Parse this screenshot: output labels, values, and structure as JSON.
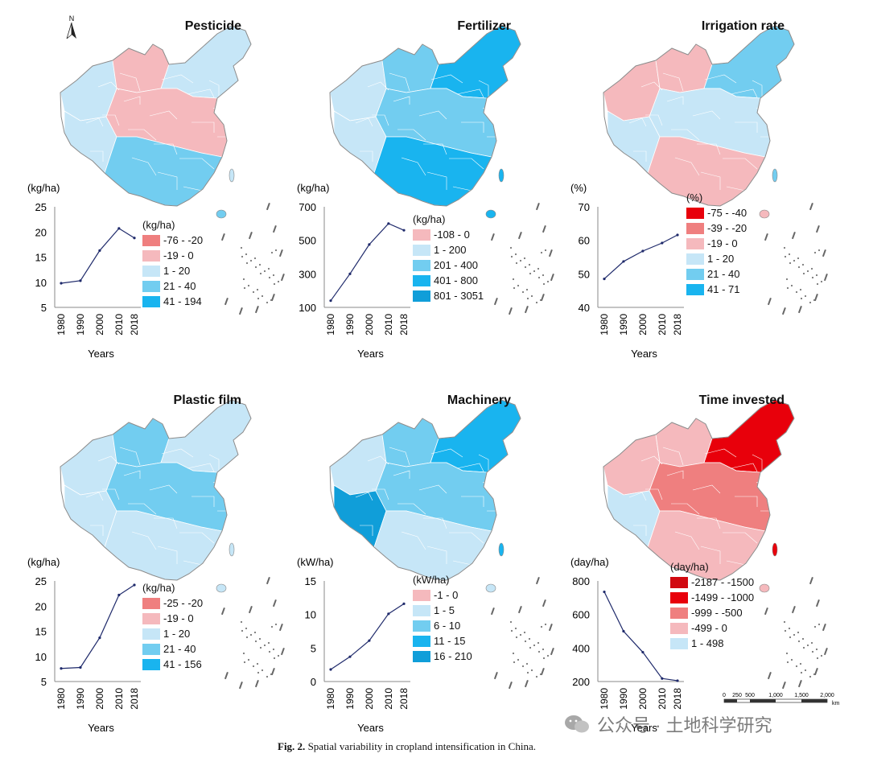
{
  "north_label": "N",
  "caption": {
    "prefix": "Fig. 2.",
    "text": "Spatial variability in cropland intensification in China."
  },
  "watermark": {
    "text": "公众号 · 土地科学研究",
    "icon": "wechat-icon"
  },
  "scalebar": {
    "ticks": [
      "0",
      "250",
      "500",
      "1,000",
      "1,500",
      "2,000"
    ],
    "unit": "km"
  },
  "panels": [
    {
      "title": "Pesticide",
      "legend_unit": "(kg/ha)",
      "legend": [
        {
          "label": "-76 - -20",
          "color": "#ef7f7f"
        },
        {
          "label": "-19 - 0",
          "color": "#f5b9bd"
        },
        {
          "label": "1 - 20",
          "color": "#c6e6f7"
        },
        {
          "label": "21 - 40",
          "color": "#72cdf0"
        },
        {
          "label": "41 - 194",
          "color": "#19b4ef"
        }
      ],
      "map_colors": [
        "#c6e6f7",
        "#f5b9bd",
        "#c6e6f7",
        "#c6e6f7",
        "#f5b9bd",
        "#72cdf0"
      ]
    },
    {
      "title": "Fertilizer",
      "legend_unit": "(kg/ha)",
      "legend": [
        {
          "label": "-108 - 0",
          "color": "#f5b9bd"
        },
        {
          "label": "1 - 200",
          "color": "#c6e6f7"
        },
        {
          "label": "201 - 400",
          "color": "#72cdf0"
        },
        {
          "label": "401 - 800",
          "color": "#19b4ef"
        },
        {
          "label": "801 - 3051",
          "color": "#109ed9"
        }
      ],
      "map_colors": [
        "#c6e6f7",
        "#72cdf0",
        "#c6e6f7",
        "#19b4ef",
        "#72cdf0",
        "#19b4ef"
      ]
    },
    {
      "title": "Irrigation rate",
      "legend_unit": "(%)",
      "legend": [
        {
          "label": "-75 - -40",
          "color": "#e8000b"
        },
        {
          "label": "-39 - -20",
          "color": "#ef7f7f"
        },
        {
          "label": "-19 - 0",
          "color": "#f5b9bd"
        },
        {
          "label": "1 - 20",
          "color": "#c6e6f7"
        },
        {
          "label": "21 - 40",
          "color": "#72cdf0"
        },
        {
          "label": "41 - 71",
          "color": "#19b4ef"
        }
      ],
      "map_colors": [
        "#f5b9bd",
        "#f5b9bd",
        "#c6e6f7",
        "#72cdf0",
        "#c6e6f7",
        "#f5b9bd"
      ]
    },
    {
      "title": "Plastic film",
      "legend_unit": "(kg/ha)",
      "legend": [
        {
          "label": "-25 - -20",
          "color": "#ef7f7f"
        },
        {
          "label": "-19 - 0",
          "color": "#f5b9bd"
        },
        {
          "label": "1 - 20",
          "color": "#c6e6f7"
        },
        {
          "label": "21 - 40",
          "color": "#72cdf0"
        },
        {
          "label": "41 - 156",
          "color": "#19b4ef"
        }
      ],
      "map_colors": [
        "#c6e6f7",
        "#72cdf0",
        "#c6e6f7",
        "#c6e6f7",
        "#72cdf0",
        "#c6e6f7"
      ]
    },
    {
      "title": "Machinery",
      "legend_unit": "(kW/ha)",
      "legend": [
        {
          "label": "-1 - 0",
          "color": "#f5b9bd"
        },
        {
          "label": "1 - 5",
          "color": "#c6e6f7"
        },
        {
          "label": "6 - 10",
          "color": "#72cdf0"
        },
        {
          "label": "11 - 15",
          "color": "#19b4ef"
        },
        {
          "label": "16 - 210",
          "color": "#109ed9"
        }
      ],
      "map_colors": [
        "#c6e6f7",
        "#72cdf0",
        "#109ed9",
        "#19b4ef",
        "#72cdf0",
        "#c6e6f7"
      ]
    },
    {
      "title": "Time invested",
      "legend_unit": "(day/ha)",
      "legend": [
        {
          "label": "-2187 - -1500",
          "color": "#d10910"
        },
        {
          "label": "-1499 - -1000",
          "color": "#e8000b"
        },
        {
          "label": "-999 - -500",
          "color": "#ef7f7f"
        },
        {
          "label": "-499 - 0",
          "color": "#f5b9bd"
        },
        {
          "label": "1 - 498",
          "color": "#c6e6f7"
        }
      ],
      "map_colors": [
        "#f5b9bd",
        "#f5b9bd",
        "#c6e6f7",
        "#e8000b",
        "#ef7f7f",
        "#f5b9bd"
      ]
    }
  ],
  "chart_data": [
    {
      "type": "line",
      "title": "Pesticide",
      "ylabel": "(kg/ha)",
      "xlabel": "Years",
      "x": [
        1980,
        1990,
        2000,
        2010,
        2018
      ],
      "y": [
        9.8,
        10.3,
        16.3,
        20.7,
        18.8
      ],
      "ylim": [
        5,
        25
      ],
      "yticks": [
        5,
        10,
        15,
        20,
        25
      ]
    },
    {
      "type": "line",
      "title": "Fertilizer",
      "ylabel": "(kg/ha)",
      "xlabel": "Years",
      "x": [
        1980,
        1990,
        2000,
        2010,
        2018
      ],
      "y": [
        140,
        300,
        475,
        600,
        560
      ],
      "ylim": [
        100,
        700
      ],
      "yticks": [
        100,
        300,
        500,
        700
      ]
    },
    {
      "type": "line",
      "title": "Irrigation rate",
      "ylabel": "(%)",
      "xlabel": "Years",
      "x": [
        1980,
        1990,
        2000,
        2010,
        2018
      ],
      "y": [
        48.5,
        53.7,
        56.8,
        59.2,
        61.6
      ],
      "ylim": [
        40,
        70
      ],
      "yticks": [
        40,
        50,
        60,
        70
      ]
    },
    {
      "type": "line",
      "title": "Plastic film",
      "ylabel": "(kg/ha)",
      "xlabel": "Years",
      "x": [
        1980,
        1990,
        2000,
        2010,
        2018
      ],
      "y": [
        7.6,
        7.8,
        13.7,
        22.2,
        24.2
      ],
      "ylim": [
        5,
        25
      ],
      "yticks": [
        5,
        10,
        15,
        20,
        25
      ]
    },
    {
      "type": "line",
      "title": "Machinery",
      "ylabel": "(kW/ha)",
      "xlabel": "Years",
      "x": [
        1980,
        1990,
        2000,
        2010,
        2018
      ],
      "y": [
        1.8,
        3.7,
        6.1,
        10.1,
        11.6
      ],
      "ylim": [
        0,
        15
      ],
      "yticks": [
        0,
        5,
        10,
        15
      ]
    },
    {
      "type": "line",
      "title": "Time invested",
      "ylabel": "(day/ha)",
      "xlabel": "Years",
      "x": [
        1980,
        1990,
        2000,
        2010,
        2018
      ],
      "y": [
        735,
        500,
        375,
        218,
        205
      ],
      "ylim": [
        200,
        800
      ],
      "yticks": [
        200,
        400,
        600,
        800
      ]
    }
  ]
}
